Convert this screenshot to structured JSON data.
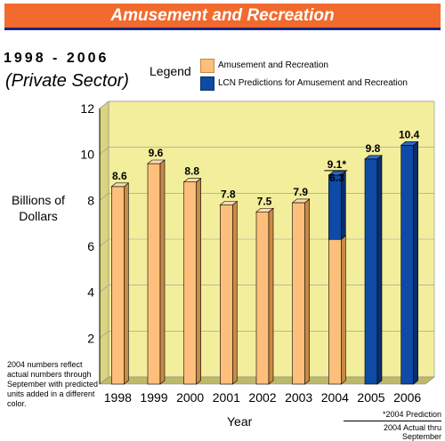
{
  "banner": {
    "title": "Amusement and Recreation"
  },
  "header": {
    "years": "1998 - 2006",
    "sector": "(Private Sector)"
  },
  "legend": {
    "title": "Legend",
    "items": [
      {
        "label": "Amusement and Recreation",
        "color": "#fdbf7b"
      },
      {
        "label": "LCN Predictions for Amusement and Recreation",
        "color": "#0e4aa6"
      }
    ]
  },
  "note": "2004 numbers reflect actual numbers through September with predicted units added in a different color.",
  "footnote": {
    "line1": "*2004 Prediction",
    "line2": "2004 Actual thru September"
  },
  "chart_data": {
    "type": "bar",
    "categories": [
      "1998",
      "1999",
      "2000",
      "2001",
      "2002",
      "2003",
      "2004",
      "2005",
      "2006"
    ],
    "series": [
      {
        "name": "Amusement and Recreation",
        "values": [
          8.6,
          9.6,
          8.8,
          7.8,
          7.5,
          7.9,
          6.3,
          null,
          null
        ]
      },
      {
        "name": "LCN Predictions for Amusement and Recreation",
        "values": [
          null,
          null,
          null,
          null,
          null,
          null,
          9.1,
          9.8,
          10.4
        ]
      }
    ],
    "data_labels": [
      "8.6",
      "9.6",
      "8.8",
      "7.8",
      "7.5",
      "7.9",
      "9.1*",
      "9.8",
      "10.4"
    ],
    "secondary_label_2004": "6.3",
    "ylabel": "Billions of Dollars",
    "xlabel": "Year",
    "ylim": [
      0,
      12
    ],
    "yticks": [
      2,
      4,
      6,
      8,
      10,
      12
    ],
    "colors": {
      "actual": "#fdbf7b",
      "predicted": "#0e4aa6",
      "plot_bg": "#f2ee9c"
    }
  }
}
